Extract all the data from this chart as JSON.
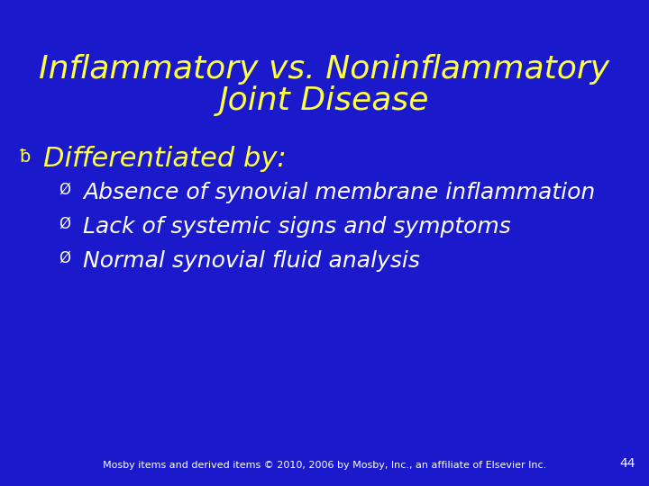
{
  "background_color": "#1a1acc",
  "title_line1": "Inflammatory vs. Noninflammatory",
  "title_line2": "Joint Disease",
  "title_color": "#ffff44",
  "title_fontsize": 26,
  "bullet1_text": "Differentiated by:",
  "bullet1_color": "#ffff44",
  "bullet1_fontsize": 22,
  "sub_bullets": [
    "Absence of synovial membrane inflammation",
    "Lack of systemic signs and symptoms",
    "Normal synovial fluid analysis"
  ],
  "sub_bullet_color": "#ffffff",
  "sub_bullet_fontsize": 18,
  "footer_text": "Mosby items and derived items © 2010, 2006 by Mosby, Inc., an affiliate of Elsevier Inc.",
  "footer_color": "#ffffff",
  "footer_fontsize": 8,
  "page_number": "44",
  "page_number_color": "#ffffff",
  "page_number_fontsize": 10
}
